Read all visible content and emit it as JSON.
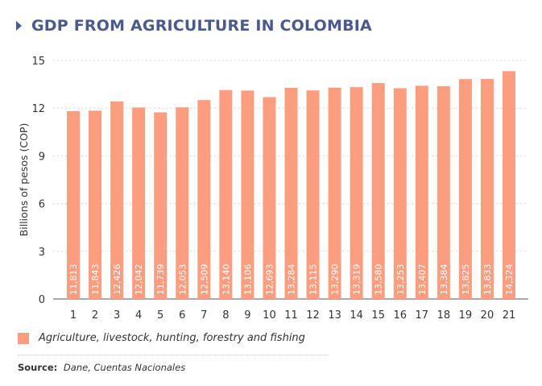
{
  "title": "GDP FROM AGRICULTURE IN COLOMBIA",
  "colors": {
    "bar": "#fb9d7f",
    "title": "#4a5a8c",
    "grid": "#d9d9d9"
  },
  "chart_data": {
    "type": "bar",
    "title": "GDP FROM AGRICULTURE IN COLOMBIA",
    "xlabel": "",
    "ylabel": "Billions of pesos (COP)",
    "ylim": [
      0,
      15
    ],
    "yticks": [
      0,
      3,
      6,
      9,
      12,
      15
    ],
    "grid": true,
    "categories": [
      "1",
      "2",
      "3",
      "4",
      "5",
      "6",
      "7",
      "8",
      "9",
      "10",
      "11",
      "12",
      "13",
      "14",
      "15",
      "16",
      "17",
      "18",
      "19",
      "20",
      "21"
    ],
    "values": [
      11.813,
      11.843,
      12.426,
      12.042,
      11.739,
      12.053,
      12.509,
      13.14,
      13.106,
      12.693,
      13.284,
      13.115,
      13.29,
      13.319,
      13.58,
      13.253,
      13.407,
      13.384,
      13.825,
      13.833,
      14.324
    ],
    "data_labels": [
      "11,813",
      "11,843",
      "12,426",
      "12,042",
      "11,739",
      "12,053",
      "12,509",
      "13,140",
      "13,106",
      "12,693",
      "13,284",
      "13,115",
      "13,290",
      "13,319",
      "13,580",
      "13,253",
      "13,407",
      "13,384",
      "13,825",
      "13,833",
      "14,324"
    ],
    "legend": [
      "Agriculture, livestock, hunting, forestry and fishing"
    ],
    "legend_position": "bottom-left"
  },
  "source": {
    "label": "Source:",
    "text": "Dane, Cuentas Nacionales"
  }
}
